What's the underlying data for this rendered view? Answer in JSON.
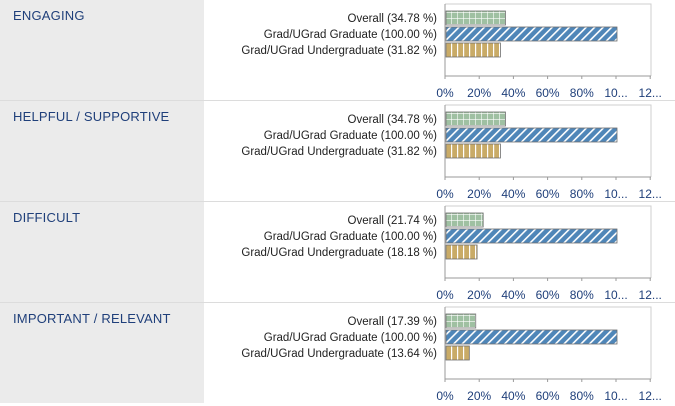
{
  "colors": {
    "overall": "#9fc0a2",
    "graduate": "#4f86b8",
    "undergraduate": "#c9ab67",
    "axis": "#9a9a9a",
    "label_bg": "#ebebeb",
    "title": "#1f3f7a"
  },
  "chart_data": [
    {
      "type": "bar",
      "orientation": "horizontal",
      "title": "ENGAGING",
      "categories": [
        "Overall (34.78 %)",
        "Grad/UGrad Graduate (100.00 %)",
        "Grad/UGrad Undergraduate (31.82 %)"
      ],
      "values": [
        34.78,
        100.0,
        31.82
      ],
      "xlim": [
        0,
        120
      ],
      "x_ticks": [
        "0%",
        "20%",
        "40%",
        "60%",
        "80%",
        "10...",
        "12..."
      ]
    },
    {
      "type": "bar",
      "orientation": "horizontal",
      "title": "HELPFUL / SUPPORTIVE",
      "categories": [
        "Overall (34.78 %)",
        "Grad/UGrad Graduate (100.00 %)",
        "Grad/UGrad Undergraduate (31.82 %)"
      ],
      "values": [
        34.78,
        100.0,
        31.82
      ],
      "xlim": [
        0,
        120
      ],
      "x_ticks": [
        "0%",
        "20%",
        "40%",
        "60%",
        "80%",
        "10...",
        "12..."
      ]
    },
    {
      "type": "bar",
      "orientation": "horizontal",
      "title": "DIFFICULT",
      "categories": [
        "Overall (21.74 %)",
        "Grad/UGrad Graduate (100.00 %)",
        "Grad/UGrad Undergraduate (18.18 %)"
      ],
      "values": [
        21.74,
        100.0,
        18.18
      ],
      "xlim": [
        0,
        120
      ],
      "x_ticks": [
        "0%",
        "20%",
        "40%",
        "60%",
        "80%",
        "10...",
        "12..."
      ]
    },
    {
      "type": "bar",
      "orientation": "horizontal",
      "title": "IMPORTANT / RELEVANT",
      "categories": [
        "Overall (17.39 %)",
        "Grad/UGrad Graduate (100.00 %)",
        "Grad/UGrad Undergraduate (13.64 %)"
      ],
      "values": [
        17.39,
        100.0,
        13.64
      ],
      "xlim": [
        0,
        120
      ],
      "x_ticks": [
        "0%",
        "20%",
        "40%",
        "60%",
        "80%",
        "10...",
        "12..."
      ]
    }
  ]
}
